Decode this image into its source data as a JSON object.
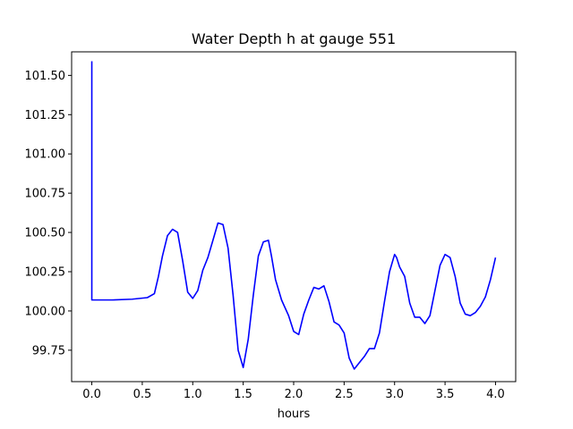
{
  "chart_data": {
    "type": "line",
    "title": "Water Depth h at gauge 551",
    "xlabel": "hours",
    "ylabel": "",
    "xlim": [
      -0.2,
      4.2
    ],
    "ylim": [
      99.55,
      101.65
    ],
    "grid": false,
    "x_ticks": [
      0.0,
      0.5,
      1.0,
      1.5,
      2.0,
      2.5,
      3.0,
      3.5,
      4.0
    ],
    "x_tick_labels": [
      "0.0",
      "0.5",
      "1.0",
      "1.5",
      "2.0",
      "2.5",
      "3.0",
      "3.5",
      "4.0"
    ],
    "y_ticks": [
      99.75,
      100.0,
      100.25,
      100.5,
      100.75,
      101.0,
      101.25,
      101.5
    ],
    "y_tick_labels": [
      "99.75",
      "100.00",
      "100.25",
      "100.50",
      "100.75",
      "101.00",
      "101.25",
      "101.50"
    ],
    "series": [
      {
        "color": "#0000ff",
        "x": [
          0.0,
          0.0,
          0.01,
          0.2,
          0.4,
          0.55,
          0.62,
          0.66,
          0.7,
          0.75,
          0.8,
          0.85,
          0.9,
          0.95,
          1.0,
          1.05,
          1.1,
          1.15,
          1.2,
          1.25,
          1.3,
          1.35,
          1.4,
          1.45,
          1.5,
          1.55,
          1.6,
          1.65,
          1.7,
          1.75,
          1.78,
          1.82,
          1.88,
          1.95,
          2.0,
          2.05,
          2.1,
          2.15,
          2.2,
          2.25,
          2.3,
          2.35,
          2.4,
          2.45,
          2.5,
          2.55,
          2.6,
          2.65,
          2.7,
          2.75,
          2.8,
          2.85,
          2.9,
          2.95,
          3.0,
          3.02,
          3.05,
          3.1,
          3.15,
          3.2,
          3.25,
          3.3,
          3.35,
          3.4,
          3.45,
          3.5,
          3.55,
          3.6,
          3.65,
          3.7,
          3.75,
          3.8,
          3.85,
          3.9,
          3.95,
          4.0
        ],
        "y": [
          101.59,
          100.07,
          100.07,
          100.07,
          100.075,
          100.085,
          100.11,
          100.22,
          100.35,
          100.48,
          100.52,
          100.5,
          100.32,
          100.12,
          100.08,
          100.13,
          100.26,
          100.34,
          100.45,
          100.56,
          100.55,
          100.4,
          100.1,
          99.75,
          99.64,
          99.82,
          100.1,
          100.35,
          100.44,
          100.45,
          100.35,
          100.2,
          100.07,
          99.97,
          99.87,
          99.85,
          99.98,
          100.07,
          100.15,
          100.14,
          100.16,
          100.06,
          99.93,
          99.91,
          99.86,
          99.7,
          99.63,
          99.67,
          99.71,
          99.76,
          99.76,
          99.86,
          100.06,
          100.25,
          100.36,
          100.34,
          100.28,
          100.22,
          100.05,
          99.96,
          99.96,
          99.92,
          99.97,
          100.13,
          100.29,
          100.36,
          100.34,
          100.22,
          100.05,
          99.98,
          99.97,
          99.99,
          100.03,
          100.09,
          100.2,
          100.34
        ]
      }
    ]
  }
}
